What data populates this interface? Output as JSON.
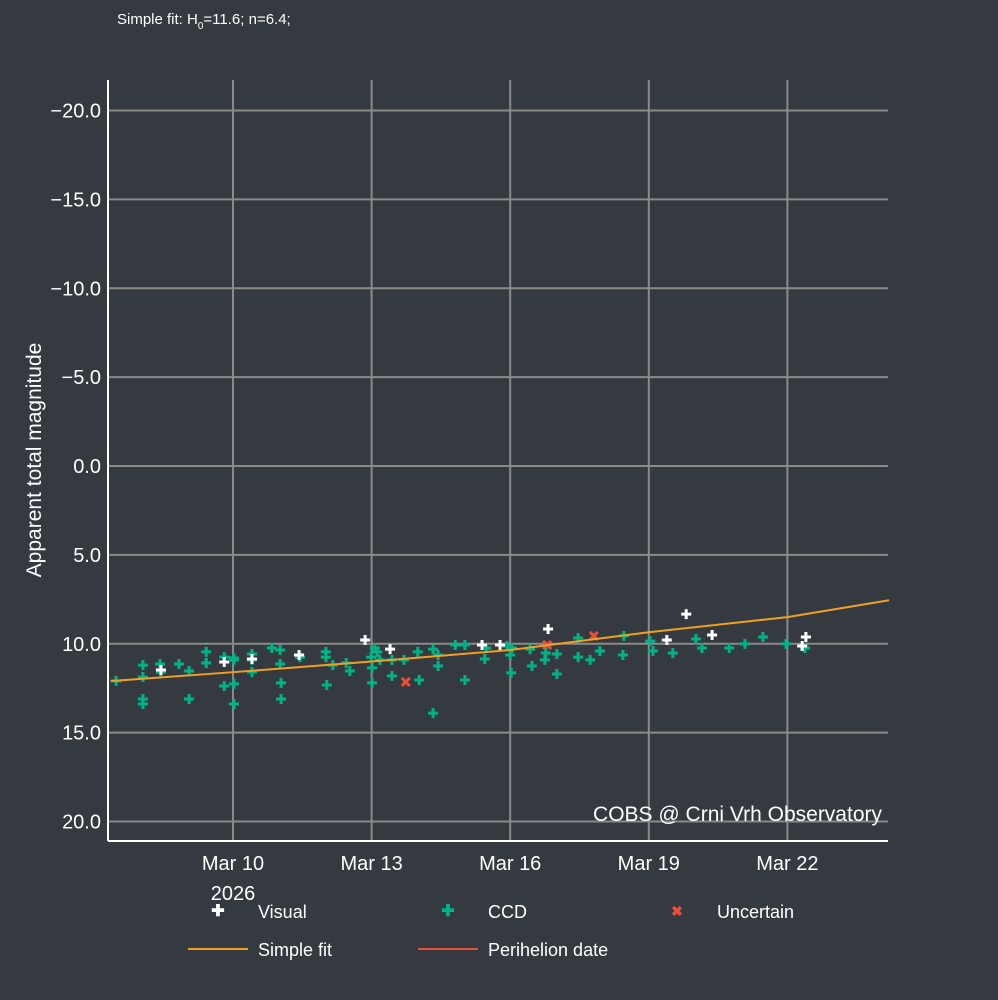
{
  "chart_data": {
    "type": "scatter",
    "title": "Simple fit: H",
    "title_sub": "0",
    "title_rest": "=11.6; n=6.4;",
    "ylabel": "Apparent total magnitude",
    "xlabel": "",
    "year_label": "2026",
    "watermark": "COBS @ Crni Vrh Observatory",
    "x_unit": "day of March 2026",
    "xlim": [
      7.35,
      24.2
    ],
    "ylim": [
      21,
      -22
    ],
    "y_reversed": true,
    "grid": true,
    "x_ticks": [
      {
        "v": 10,
        "label": "Mar 10"
      },
      {
        "v": 13,
        "label": "Mar 13"
      },
      {
        "v": 16,
        "label": "Mar 16"
      },
      {
        "v": 19,
        "label": "Mar 19"
      },
      {
        "v": 22,
        "label": "Mar 22"
      }
    ],
    "y_ticks": [
      {
        "v": -20,
        "label": "−20.0"
      },
      {
        "v": -15,
        "label": "−15.0"
      },
      {
        "v": -10,
        "label": "−10.0"
      },
      {
        "v": -5,
        "label": "−5.0"
      },
      {
        "v": 0,
        "label": "0.0"
      },
      {
        "v": 5,
        "label": "5.0"
      },
      {
        "v": 10,
        "label": "10.0"
      },
      {
        "v": 15,
        "label": "15.0"
      },
      {
        "v": 20,
        "label": "20.0"
      }
    ],
    "legend": [
      "Visual",
      "CCD",
      "Uncertain",
      "Simple fit",
      "Perihelion date"
    ],
    "legend_placement": "bottom",
    "colors": {
      "Visual": "#ffffff",
      "CCD": "#00b386",
      "Uncertain": "#e8503a",
      "Simple fit": "#f0a020",
      "Perihelion date": "#e8503a",
      "grid": "#8a8a8a",
      "bg": "#353a41"
    },
    "series": [
      {
        "name": "CCD",
        "points": [
          [
            7.47,
            12.09
          ],
          [
            8.05,
            11.2
          ],
          [
            8.05,
            11.87
          ],
          [
            8.05,
            13.11
          ],
          [
            8.05,
            13.39
          ],
          [
            8.42,
            11.14
          ],
          [
            8.44,
            11.59
          ],
          [
            8.83,
            11.14
          ],
          [
            9.05,
            11.53
          ],
          [
            9.05,
            13.11
          ],
          [
            9.42,
            10.46
          ],
          [
            9.42,
            11.08
          ],
          [
            9.81,
            10.75
          ],
          [
            9.81,
            12.38
          ],
          [
            10.02,
            10.8
          ],
          [
            10.02,
            10.91
          ],
          [
            10.02,
            12.26
          ],
          [
            10.02,
            13.39
          ],
          [
            10.41,
            10.58
          ],
          [
            10.41,
            10.91
          ],
          [
            10.41,
            11.59
          ],
          [
            10.84,
            10.24
          ],
          [
            11.02,
            10.35
          ],
          [
            11.02,
            11.14
          ],
          [
            11.04,
            12.2
          ],
          [
            11.04,
            13.11
          ],
          [
            11.45,
            10.75
          ],
          [
            12.01,
            10.46
          ],
          [
            12.01,
            10.75
          ],
          [
            12.03,
            12.32
          ],
          [
            12.16,
            11.2
          ],
          [
            12.45,
            11.08
          ],
          [
            12.53,
            11.53
          ],
          [
            12.99,
            10.75
          ],
          [
            13.01,
            11.36
          ],
          [
            13.01,
            12.2
          ],
          [
            13.07,
            10.24
          ],
          [
            13.12,
            10.46
          ],
          [
            13.18,
            10.91
          ],
          [
            13.44,
            10.91
          ],
          [
            13.44,
            11.81
          ],
          [
            13.7,
            10.91
          ],
          [
            14.0,
            10.46
          ],
          [
            14.03,
            12.04
          ],
          [
            14.33,
            10.3
          ],
          [
            14.33,
            13.9
          ],
          [
            14.44,
            10.63
          ],
          [
            14.44,
            11.25
          ],
          [
            14.81,
            10.07
          ],
          [
            15.02,
            10.07
          ],
          [
            15.02,
            12.04
          ],
          [
            15.45,
            10.86
          ],
          [
            15.48,
            10.24
          ],
          [
            15.93,
            10.13
          ],
          [
            16.0,
            10.63
          ],
          [
            16.02,
            11.64
          ],
          [
            16.04,
            10.24
          ],
          [
            16.43,
            10.3
          ],
          [
            16.47,
            11.25
          ],
          [
            16.75,
            10.91
          ],
          [
            16.77,
            10.52
          ],
          [
            17.01,
            11.7
          ],
          [
            17.01,
            10.58
          ],
          [
            17.47,
            9.68
          ],
          [
            17.47,
            10.75
          ],
          [
            17.73,
            10.91
          ],
          [
            17.94,
            10.41
          ],
          [
            18.44,
            10.63
          ],
          [
            18.46,
            9.56
          ],
          [
            19.03,
            9.85
          ],
          [
            19.09,
            10.41
          ],
          [
            19.52,
            10.52
          ],
          [
            20.02,
            9.73
          ],
          [
            20.15,
            10.24
          ],
          [
            20.74,
            10.24
          ],
          [
            21.08,
            10.01
          ],
          [
            21.47,
            9.62
          ],
          [
            21.97,
            10.01
          ],
          [
            22.38,
            10.24
          ]
        ]
      },
      {
        "name": "Visual",
        "points": [
          [
            8.44,
            11.48
          ],
          [
            9.81,
            11.03
          ],
          [
            10.41,
            10.86
          ],
          [
            11.43,
            10.63
          ],
          [
            12.86,
            9.79
          ],
          [
            13.4,
            10.3
          ],
          [
            15.39,
            10.07
          ],
          [
            15.78,
            10.07
          ],
          [
            16.82,
            9.17
          ],
          [
            19.39,
            9.79
          ],
          [
            19.81,
            8.33
          ],
          [
            20.37,
            9.51
          ],
          [
            22.4,
            9.62
          ],
          [
            22.32,
            10.13
          ]
        ]
      },
      {
        "name": "Uncertain",
        "points": [
          [
            13.74,
            12.15
          ],
          [
            16.8,
            10.07
          ],
          [
            17.81,
            9.56
          ]
        ]
      },
      {
        "name": "Simple fit",
        "type": "line",
        "points": [
          [
            7.35,
            12.1
          ],
          [
            10,
            11.6
          ],
          [
            13,
            11.0
          ],
          [
            16,
            10.35
          ],
          [
            19,
            9.35
          ],
          [
            22,
            8.5
          ],
          [
            24.2,
            7.55
          ]
        ]
      }
    ]
  }
}
